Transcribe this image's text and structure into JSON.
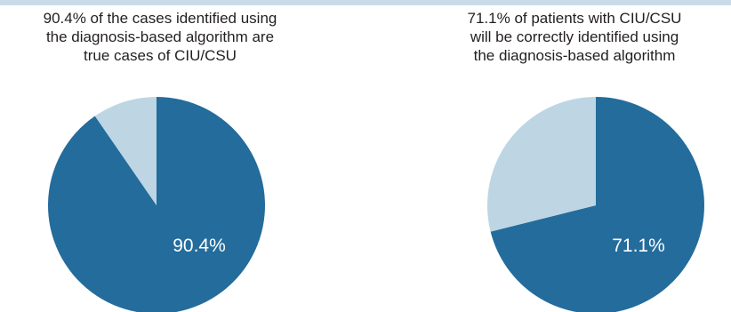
{
  "colors": {
    "primary": "#236c9c",
    "secondary": "#bed5e3",
    "label": "#ffffff",
    "rule": "#c9dbe8"
  },
  "chart_data": [
    {
      "type": "pie",
      "title": "90.4% of the cases identified using\nthe diagnosis-based algorithm are\ntrue cases of CIU/CSU",
      "slices": [
        {
          "value": 90.4,
          "label": "90.4%",
          "color": "#236c9c"
        },
        {
          "value": 9.6,
          "label": "",
          "color": "#bed5e3"
        }
      ],
      "start_angle_deg": 0,
      "direction": "clockwise"
    },
    {
      "type": "pie",
      "title": "71.1% of patients with CIU/CSU\nwill be correctly identified using\nthe diagnosis-based algorithm",
      "slices": [
        {
          "value": 71.1,
          "label": "71.1%",
          "color": "#236c9c"
        },
        {
          "value": 28.9,
          "label": "",
          "color": "#bed5e3"
        }
      ],
      "start_angle_deg": 0,
      "direction": "clockwise"
    }
  ]
}
